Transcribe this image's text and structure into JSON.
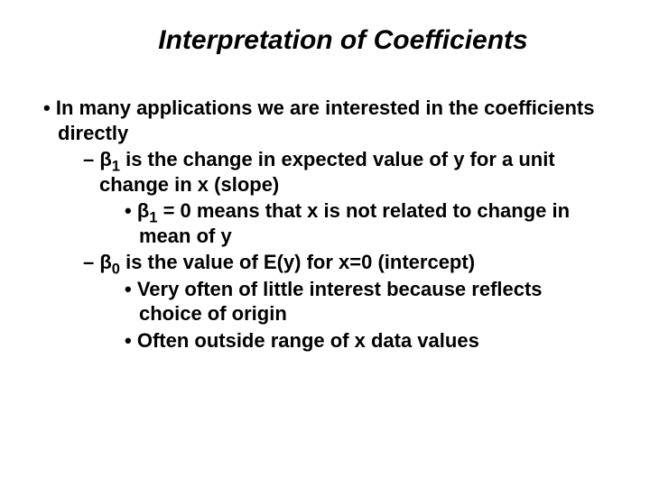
{
  "title": "Interpretation of Coefficients",
  "bullets": {
    "main": "In many applications we are interested in the coefficients directly",
    "sub1_pre": "β",
    "sub1_sub": "1",
    "sub1_post": " is the change in expected value of y for a unit change in x (slope)",
    "sub1_1_pre": "β",
    "sub1_1_sub": "1",
    "sub1_1_post": " = 0 means that x is not related to change in mean of y",
    "sub2_pre": "β",
    "sub2_sub": "0",
    "sub2_post": " is the value of E(y) for x=0 (intercept)",
    "sub2_1": "Very often of little interest because reflects choice of origin",
    "sub2_2": "Often outside range of x data values"
  },
  "style": {
    "title_fontsize": 30,
    "body_fontsize": 22,
    "font_family": "Arial",
    "text_color": "#000000",
    "background_color": "#ffffff",
    "title_italic": true,
    "title_bold": true,
    "body_bold": true
  }
}
